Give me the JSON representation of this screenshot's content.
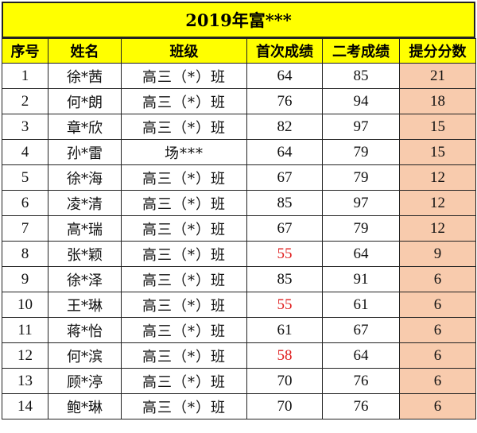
{
  "title": "2019年富***",
  "headers": [
    "序号",
    "姓名",
    "班级",
    "首次成绩",
    "二考成绩",
    "提分分数"
  ],
  "colors": {
    "header_bg": "#ffff00",
    "gain_bg": "#f8cbad",
    "low_score_text": "#e02020"
  },
  "rows": [
    {
      "no": "1",
      "name": "徐*茜",
      "class": "高三（*）班",
      "first": "64",
      "second": "85",
      "gain": "21",
      "first_low": false
    },
    {
      "no": "2",
      "name": "何*朗",
      "class": "高三（*）班",
      "first": "76",
      "second": "94",
      "gain": "18",
      "first_low": false
    },
    {
      "no": "3",
      "name": "章*欣",
      "class": "高三（*）班",
      "first": "82",
      "second": "97",
      "gain": "15",
      "first_low": false
    },
    {
      "no": "4",
      "name": "孙*雷",
      "class": "场***",
      "first": "64",
      "second": "79",
      "gain": "15",
      "first_low": false
    },
    {
      "no": "5",
      "name": "徐*海",
      "class": "高三（*）班",
      "first": "67",
      "second": "79",
      "gain": "12",
      "first_low": false
    },
    {
      "no": "6",
      "name": "凌*清",
      "class": "高三（*）班",
      "first": "85",
      "second": "97",
      "gain": "12",
      "first_low": false
    },
    {
      "no": "7",
      "name": "高*瑞",
      "class": "高三（*）班",
      "first": "67",
      "second": "79",
      "gain": "12",
      "first_low": false
    },
    {
      "no": "8",
      "name": "张*颖",
      "class": "高三（*）班",
      "first": "55",
      "second": "64",
      "gain": "9",
      "first_low": true
    },
    {
      "no": "9",
      "name": "徐*泽",
      "class": "高三（*）班",
      "first": "85",
      "second": "91",
      "gain": "6",
      "first_low": false
    },
    {
      "no": "10",
      "name": "王*琳",
      "class": "高三（*）班",
      "first": "55",
      "second": "61",
      "gain": "6",
      "first_low": true
    },
    {
      "no": "11",
      "name": "蒋*怡",
      "class": "高三（*）班",
      "first": "61",
      "second": "67",
      "gain": "6",
      "first_low": false
    },
    {
      "no": "12",
      "name": "何*滨",
      "class": "高三（*）班",
      "first": "58",
      "second": "64",
      "gain": "6",
      "first_low": true
    },
    {
      "no": "13",
      "name": "顾*渟",
      "class": "高三（*）班",
      "first": "70",
      "second": "76",
      "gain": "6",
      "first_low": false
    },
    {
      "no": "14",
      "name": "鲍*琳",
      "class": "高三（*）班",
      "first": "70",
      "second": "76",
      "gain": "6",
      "first_low": false
    }
  ]
}
